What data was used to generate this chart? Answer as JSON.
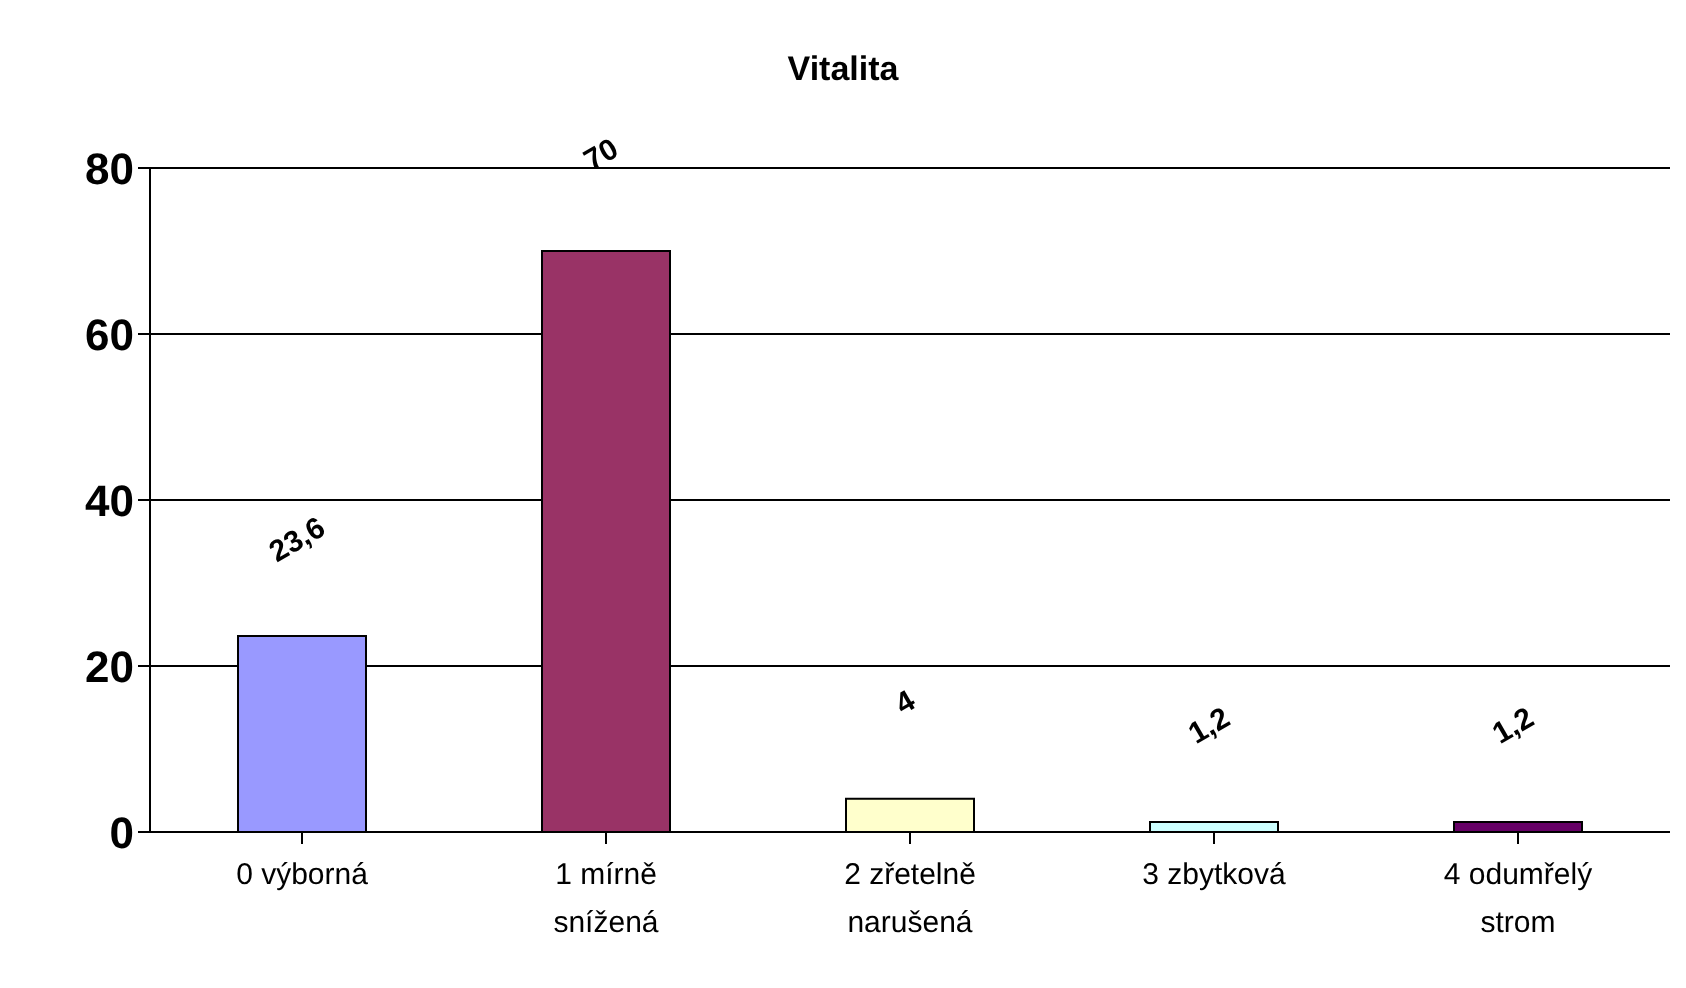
{
  "chart_data": {
    "type": "bar",
    "title": "Vitalita",
    "categories": [
      "0 výborná",
      "1 mírně snížená",
      "2 zřetelně narušená",
      "3 zbytková",
      "4 odumřelý strom"
    ],
    "values": [
      23.6,
      70,
      4,
      1.2,
      1.2
    ],
    "value_labels": [
      "23,6",
      "70",
      "4",
      "1,2",
      "1,2"
    ],
    "colors": [
      "#9999ff",
      "#993366",
      "#ffffcc",
      "#ccffff",
      "#660066"
    ],
    "ylim": [
      0,
      80
    ],
    "yticks": [
      0,
      20,
      40,
      60,
      80
    ],
    "grid": "y"
  }
}
